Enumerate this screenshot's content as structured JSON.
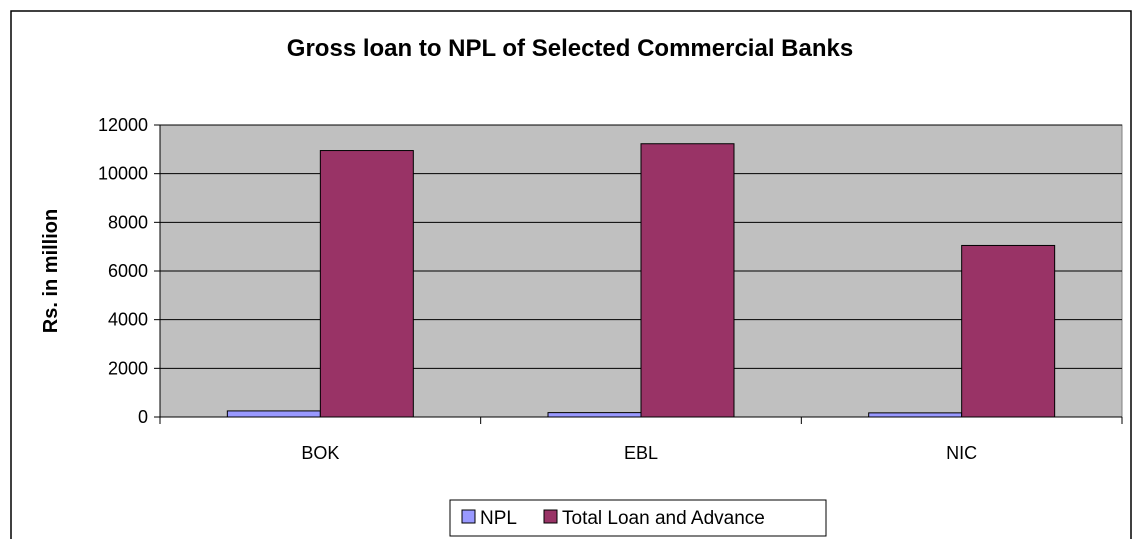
{
  "chart_data": {
    "type": "bar",
    "title": "Gross loan to NPL of Selected Commercial Banks",
    "xlabel": "",
    "ylabel": "Rs. in million",
    "categories": [
      "BOK",
      "EBL",
      "NIC"
    ],
    "series": [
      {
        "name": "NPL",
        "values": [
          250,
          180,
          170
        ],
        "color": "#9999ff"
      },
      {
        "name": "Total Loan and Advance",
        "values": [
          10950,
          11230,
          7050
        ],
        "color": "#993366"
      }
    ],
    "ylim": [
      0,
      12000
    ],
    "yticks": [
      0,
      2000,
      4000,
      6000,
      8000,
      10000,
      12000
    ],
    "grid": true,
    "plot_background": "#c0c0c0",
    "legend_position": "bottom"
  }
}
